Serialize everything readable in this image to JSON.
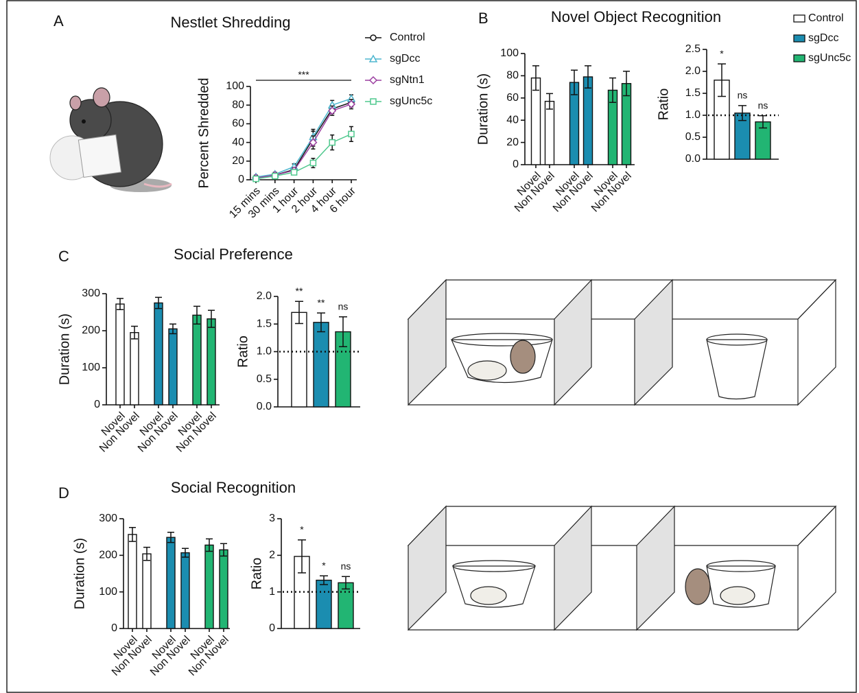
{
  "chart_data": [
    {
      "type": "line",
      "panel": "A",
      "title": "Nestlet Shredding",
      "ylabel": "Percent Shredded",
      "categories": [
        "15 mins",
        "30 mins",
        "1 hour",
        "2 hour",
        "4 hour",
        "6 hour"
      ],
      "series": [
        {
          "name": "Control",
          "color": "#111111",
          "marker": "circle",
          "values": [
            2,
            5,
            11,
            44,
            76,
            83
          ],
          "errors": [
            2,
            2,
            3,
            8,
            5,
            5
          ]
        },
        {
          "name": "sgDcc",
          "color": "#4db6cf",
          "marker": "triangle",
          "values": [
            3,
            6,
            14,
            46,
            80,
            87
          ],
          "errors": [
            2,
            2,
            3,
            8,
            5,
            4
          ]
        },
        {
          "name": "sgNtn1",
          "color": "#9b3ea0",
          "marker": "diamond",
          "values": [
            2,
            5,
            10,
            40,
            74,
            81
          ],
          "errors": [
            2,
            2,
            3,
            7,
            5,
            5
          ]
        },
        {
          "name": "sgUnc5c",
          "color": "#4fc88d",
          "marker": "square",
          "values": [
            1,
            4,
            8,
            18,
            40,
            49
          ],
          "errors": [
            2,
            2,
            2,
            5,
            8,
            8
          ]
        }
      ],
      "ylim": [
        0,
        100
      ],
      "yticks": [
        0,
        20,
        40,
        60,
        80,
        100
      ],
      "annotation": "***"
    },
    {
      "type": "bar",
      "panel": "B",
      "title": "Novel Object Recognition",
      "ylabel": "Duration (s)",
      "categories": [
        "Novel",
        "Non Novel"
      ],
      "series": [
        {
          "name": "Control",
          "color": "#ffffff",
          "values": [
            78,
            57
          ],
          "errors": [
            11,
            7
          ]
        },
        {
          "name": "sgDcc",
          "color": "#1b8db0",
          "values": [
            74,
            79
          ],
          "errors": [
            11,
            10
          ]
        },
        {
          "name": "sgUnc5c",
          "color": "#22b573",
          "values": [
            67,
            73
          ],
          "errors": [
            11,
            11
          ]
        }
      ],
      "ylim": [
        0,
        100
      ],
      "yticks": [
        0,
        20,
        40,
        60,
        80,
        100
      ],
      "legend": "top-right"
    },
    {
      "type": "bar",
      "ylabel": "Ratio",
      "values": [
        1.8,
        1.05,
        0.85
      ],
      "errors": [
        0.37,
        0.17,
        0.14
      ],
      "colors": [
        "#ffffff",
        "#1b8db0",
        "#22b573"
      ],
      "annotations": [
        "*",
        "ns",
        "ns"
      ],
      "reference_line": 1,
      "ylim": [
        0,
        2.5
      ],
      "yticks": [
        {
          "value": 0,
          "label": "0.0"
        },
        0.5,
        {
          "value": 1,
          "label": "1.0"
        },
        1.5,
        {
          "value": 2,
          "label": "2.0"
        },
        2.5
      ]
    },
    {
      "type": "bar",
      "panel": "C",
      "title": "Social Preference",
      "ylabel": "Duration (s)",
      "categories": [
        "Novel",
        "Non Novel"
      ],
      "series": [
        {
          "color": "#ffffff",
          "values": [
            272,
            195
          ],
          "errors": [
            15,
            17
          ]
        },
        {
          "color": "#1b8db0",
          "values": [
            275,
            205
          ],
          "errors": [
            15,
            13
          ]
        },
        {
          "color": "#22b573",
          "values": [
            242,
            232
          ],
          "errors": [
            24,
            23
          ]
        }
      ],
      "ylim": [
        0,
        300
      ],
      "yticks": [
        0,
        100,
        200,
        300
      ]
    },
    {
      "type": "bar",
      "ylabel": "Ratio",
      "values": [
        1.71,
        1.53,
        1.36
      ],
      "errors": [
        0.2,
        0.17,
        0.27
      ],
      "colors": [
        "#ffffff",
        "#1b8db0",
        "#22b573"
      ],
      "annotations": [
        "**",
        "**",
        "ns"
      ],
      "reference_line": 1,
      "ylim": [
        0,
        2
      ],
      "yticks": [
        {
          "value": 0,
          "label": "0.0"
        },
        0.5,
        {
          "value": 1,
          "label": "1.0"
        },
        1.5,
        {
          "value": 2,
          "label": "2.0"
        }
      ]
    },
    {
      "type": "bar",
      "panel": "D",
      "title": "Social Recognition",
      "ylabel": "Duration (s)",
      "categories": [
        "Novel",
        "Non Novel"
      ],
      "series": [
        {
          "color": "#ffffff",
          "values": [
            257,
            204
          ],
          "errors": [
            19,
            18
          ]
        },
        {
          "color": "#1b8db0",
          "values": [
            249,
            207
          ],
          "errors": [
            14,
            12
          ]
        },
        {
          "color": "#22b573",
          "values": [
            228,
            215
          ],
          "errors": [
            17,
            17
          ]
        }
      ],
      "ylim": [
        0,
        300
      ],
      "yticks": [
        0,
        100,
        200,
        300
      ]
    },
    {
      "type": "bar",
      "ylabel": "Ratio",
      "values": [
        1.97,
        1.32,
        1.25
      ],
      "errors": [
        0.45,
        0.12,
        0.17
      ],
      "colors": [
        "#ffffff",
        "#1b8db0",
        "#22b573"
      ],
      "annotations": [
        "*",
        "*",
        "ns"
      ],
      "reference_line": 1,
      "ylim": [
        0,
        3
      ],
      "yticks": [
        0,
        1,
        2,
        3
      ]
    }
  ]
}
